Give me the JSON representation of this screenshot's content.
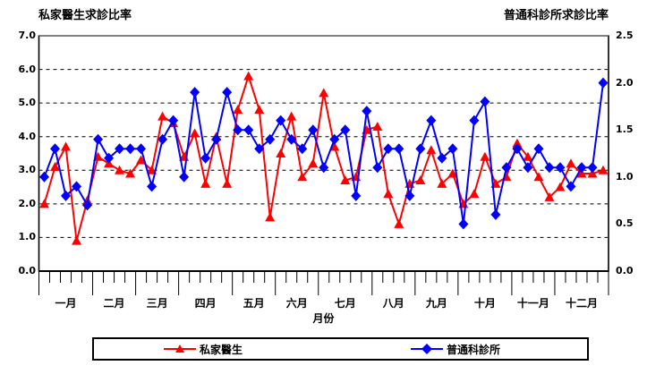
{
  "chart_data": {
    "type": "line",
    "xlabel": "月份",
    "left_axis": {
      "title": "私家醫生求診比率",
      "min": 0,
      "max": 7,
      "ticks": [
        "7.0",
        "6.0",
        "5.0",
        "4.0",
        "3.0",
        "2.0",
        "1.0",
        "0.0"
      ],
      "tick_values": [
        7,
        6,
        5,
        4,
        3,
        2,
        1,
        0
      ]
    },
    "right_axis": {
      "title": "普通科診所求診比率",
      "min": 0,
      "max": 2.5,
      "ticks": [
        "2.5",
        "2.0",
        "1.5",
        "1.0",
        "0.5",
        "0.0"
      ],
      "tick_values": [
        2.5,
        2.0,
        1.5,
        1.0,
        0.5,
        0.0
      ]
    },
    "grid_values_left": [
      1,
      2,
      3,
      4,
      5,
      6
    ],
    "grid_on": true,
    "legend_position": "bottom",
    "months": [
      {
        "label": "一月",
        "weeks": 5
      },
      {
        "label": "二月",
        "weeks": 4
      },
      {
        "label": "三月",
        "weeks": 4
      },
      {
        "label": "四月",
        "weeks": 5
      },
      {
        "label": "五月",
        "weeks": 4
      },
      {
        "label": "六月",
        "weeks": 4
      },
      {
        "label": "七月",
        "weeks": 5
      },
      {
        "label": "八月",
        "weeks": 4
      },
      {
        "label": "九月",
        "weeks": 4
      },
      {
        "label": "十月",
        "weeks": 5
      },
      {
        "label": "十一月",
        "weeks": 4
      },
      {
        "label": "十二月",
        "weeks": 5
      }
    ],
    "series": [
      {
        "name": "私家醫生",
        "axis": "left",
        "color": "#FF0000",
        "marker": "triangle",
        "values": [
          2.0,
          3.1,
          3.7,
          0.9,
          2.1,
          3.4,
          3.2,
          3.0,
          2.9,
          3.3,
          3.0,
          4.6,
          4.4,
          3.4,
          4.1,
          2.6,
          4.0,
          2.6,
          4.8,
          5.8,
          4.8,
          1.6,
          3.5,
          4.6,
          2.8,
          3.2,
          5.3,
          3.7,
          2.7,
          2.8,
          4.2,
          4.3,
          2.3,
          1.4,
          2.6,
          2.7,
          3.6,
          2.6,
          2.9,
          2.0,
          2.3,
          3.4,
          2.6,
          2.8,
          3.8,
          3.4,
          2.8,
          2.2,
          2.5,
          3.2,
          2.9,
          2.9,
          3.0
        ]
      },
      {
        "name": "普通科診所",
        "axis": "right",
        "color": "#0000FF",
        "marker": "diamond",
        "values": [
          1.0,
          1.3,
          0.8,
          0.9,
          0.7,
          1.4,
          1.2,
          1.3,
          1.3,
          1.3,
          0.9,
          1.4,
          1.6,
          1.0,
          1.9,
          1.2,
          1.4,
          1.9,
          1.5,
          1.5,
          1.3,
          1.4,
          1.6,
          1.4,
          1.3,
          1.5,
          1.1,
          1.4,
          1.5,
          0.8,
          1.7,
          1.1,
          1.3,
          1.3,
          0.8,
          1.3,
          1.6,
          1.2,
          1.3,
          0.5,
          1.6,
          1.8,
          0.6,
          1.1,
          1.3,
          1.1,
          1.3,
          1.1,
          1.1,
          0.9,
          1.1,
          1.1,
          2.0
        ]
      }
    ]
  }
}
